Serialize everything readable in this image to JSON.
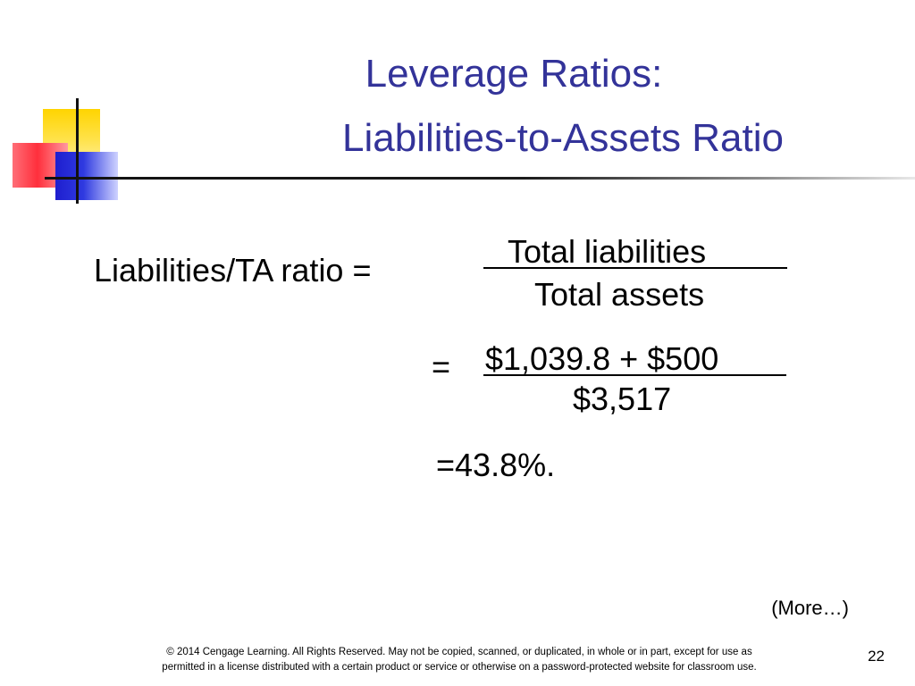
{
  "slide": {
    "title_line_1": "Leverage Ratios:",
    "title_line_2": "Liabilities-to-Assets Ratio",
    "formula": {
      "label": "Liabilities/TA ratio =",
      "numerator": "Total liabilities",
      "denominator": "Total assets"
    },
    "calculation": {
      "equals": "=",
      "numerator": "$1,039.8 + $500",
      "denominator": "$3,517"
    },
    "result": "=43.8%.",
    "more": "(More…)",
    "footer_line_1": "© 2014 Cengage Learning. All Rights Reserved. May not be copied, scanned, or duplicated, in whole or in part, except for use as",
    "footer_line_2": "permitted in a license distributed with a certain product or service or otherwise on a password-protected website for classroom use.",
    "page_number": "22"
  },
  "colors": {
    "title": "#333399",
    "text": "#000000",
    "accent_yellow": "#FFD400",
    "accent_red": "#FF2F3C",
    "accent_blue": "#1E1ECF"
  }
}
